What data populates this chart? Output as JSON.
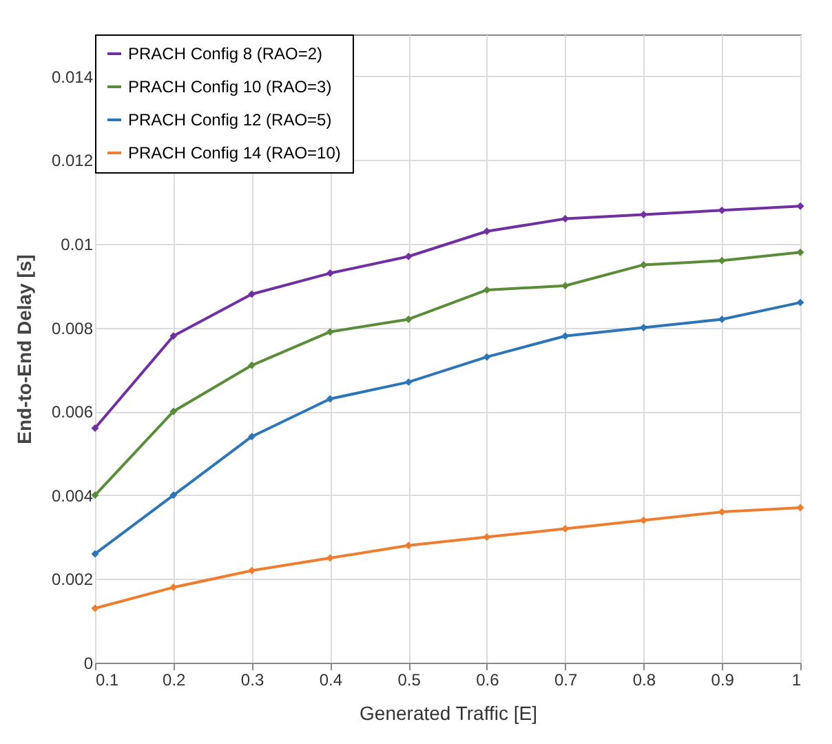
{
  "chart_data": {
    "type": "line",
    "xlabel": "Generated Traffic [E]",
    "ylabel": "End-to-End Delay [s]",
    "x": [
      0.1,
      0.2,
      0.3,
      0.4,
      0.5,
      0.6,
      0.7,
      0.8,
      0.9,
      1
    ],
    "series": [
      {
        "name": "PRACH Config 8 (RAO=2)",
        "color": "#7030a0",
        "values": [
          0.0056,
          0.0078,
          0.0088,
          0.0093,
          0.0097,
          0.0103,
          0.0106,
          0.0107,
          0.0108,
          0.0109
        ]
      },
      {
        "name": "PRACH Config 10 (RAO=3)",
        "color": "#5b8c3a",
        "values": [
          0.004,
          0.006,
          0.0071,
          0.0079,
          0.0082,
          0.0089,
          0.009,
          0.0095,
          0.0096,
          0.0098
        ]
      },
      {
        "name": "PRACH Config 12 (RAO=5)",
        "color": "#2e75b6",
        "values": [
          0.0026,
          0.004,
          0.0054,
          0.0063,
          0.0067,
          0.0073,
          0.0078,
          0.008,
          0.0082,
          0.0086
        ]
      },
      {
        "name": "PRACH Config 14 (RAO=10)",
        "color": "#ed7d31",
        "values": [
          0.0013,
          0.0018,
          0.0022,
          0.0025,
          0.0028,
          0.003,
          0.0032,
          0.0034,
          0.0036,
          0.0037
        ]
      }
    ],
    "xlim": [
      0.1,
      1
    ],
    "xticks": [
      0.1,
      0.2,
      0.3,
      0.4,
      0.5,
      0.6,
      0.7,
      0.8,
      0.9,
      1
    ],
    "ylim": [
      0,
      0.015
    ],
    "yticks": [
      0,
      0.002,
      0.004,
      0.006,
      0.008,
      0.01,
      0.012,
      0.014
    ],
    "grid": true,
    "legend": "top left",
    "marker": "diamond",
    "line_style": "solid"
  }
}
